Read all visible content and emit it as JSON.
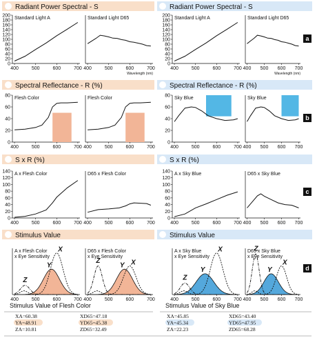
{
  "colors": {
    "left_band": "#f9dfc9",
    "right_band": "#d8e8f7",
    "flesh_fill": "#f2b597",
    "sky_fill": "#53b7e5",
    "sky_curve_fill": "#54a8dc",
    "badge": "#111111",
    "y_highlight_left": "#f9dfc9",
    "y_highlight_right": "#d8e8f7"
  },
  "rows": [
    {
      "label": "",
      "left_title": "Radiant Power Spectral - S",
      "right_title": "Radiant Power Spectral - S"
    },
    {
      "label": "b",
      "left_title": "Spectral Reflectance - R (%)",
      "right_title": "Spectral Reflectance - R (%)"
    },
    {
      "label": "c",
      "left_title": "S x R (%)",
      "right_title": "S x R (%)"
    },
    {
      "label": "d",
      "left_title": "Stimulus Value",
      "right_title": "Stimulus Value"
    }
  ],
  "badges": [
    "a",
    "b",
    "c",
    "d"
  ],
  "wavelength_unit": "Wavelength (nm)",
  "curve_labels": [
    "Z",
    "Y",
    "X"
  ],
  "chart_data": [
    {
      "id": "a1",
      "type": "line",
      "subtitle": "Standard Light A",
      "x": [
        400,
        450,
        500,
        550,
        600,
        650,
        700
      ],
      "y": [
        10,
        30,
        58,
        85,
        115,
        142,
        170
      ],
      "ylim": [
        0,
        200
      ],
      "yticks": [
        0,
        20,
        40,
        60,
        80,
        100,
        120,
        140,
        160,
        180,
        200
      ],
      "xticks": [
        400,
        500,
        600,
        700
      ]
    },
    {
      "id": "a2",
      "type": "line",
      "subtitle": "Standard Light D65",
      "x": [
        400,
        420,
        440,
        460,
        480,
        500,
        520,
        540,
        560,
        580,
        600,
        620,
        640,
        660,
        680,
        700
      ],
      "y": [
        82,
        93,
        104,
        117,
        114,
        110,
        105,
        104,
        99,
        96,
        90,
        88,
        84,
        80,
        74,
        72
      ],
      "ylim": [
        0,
        200
      ],
      "xticks": [
        400,
        500,
        600,
        700
      ]
    },
    {
      "id": "a3",
      "type": "line",
      "subtitle": "Standard Light A",
      "x": [
        400,
        450,
        500,
        550,
        600,
        650,
        700
      ],
      "y": [
        10,
        30,
        58,
        85,
        115,
        142,
        170
      ],
      "ylim": [
        0,
        200
      ],
      "yticks": [
        0,
        20,
        40,
        60,
        80,
        100,
        120,
        140,
        160,
        180,
        200
      ],
      "xticks": [
        400,
        500,
        600,
        700
      ]
    },
    {
      "id": "a4",
      "type": "line",
      "subtitle": "Standard Light D65",
      "x": [
        400,
        420,
        440,
        460,
        480,
        500,
        520,
        540,
        560,
        580,
        600,
        620,
        640,
        660,
        680,
        700
      ],
      "y": [
        82,
        93,
        104,
        117,
        114,
        110,
        105,
        104,
        99,
        96,
        90,
        88,
        84,
        80,
        74,
        72
      ],
      "ylim": [
        0,
        200
      ],
      "xticks": [
        400,
        500,
        600,
        700
      ]
    },
    {
      "id": "b1",
      "type": "line",
      "subtitle": "Flesh Color",
      "x": [
        400,
        450,
        500,
        530,
        560,
        580,
        600,
        620,
        650,
        700
      ],
      "y": [
        21,
        22,
        25,
        29,
        42,
        60,
        66,
        67,
        67,
        68
      ],
      "ylim": [
        0,
        80
      ],
      "yticks": [
        0,
        20,
        40,
        60,
        80
      ],
      "xticks": [
        400,
        500,
        600,
        700
      ],
      "swatch": {
        "x0": 580,
        "x1": 670,
        "y0": 0,
        "y1": 50
      }
    },
    {
      "id": "b2",
      "type": "line",
      "subtitle": "Flesh Color",
      "x": [
        400,
        450,
        500,
        530,
        560,
        580,
        600,
        620,
        650,
        700
      ],
      "y": [
        21,
        22,
        25,
        29,
        42,
        60,
        66,
        67,
        67,
        68
      ],
      "ylim": [
        0,
        80
      ],
      "xticks": [
        400,
        500,
        600,
        700
      ],
      "swatch": {
        "x0": 580,
        "x1": 670,
        "y0": 0,
        "y1": 50
      }
    },
    {
      "id": "b3",
      "type": "line",
      "subtitle": "Sky Blue",
      "x": [
        400,
        420,
        450,
        480,
        500,
        530,
        560,
        600,
        640,
        680,
        700
      ],
      "y": [
        35,
        45,
        58,
        60,
        59,
        53,
        45,
        40,
        37,
        38,
        40
      ],
      "ylim": [
        0,
        80
      ],
      "yticks": [
        0,
        20,
        40,
        60,
        80
      ],
      "xticks": [
        400,
        500,
        600,
        700
      ],
      "swatch": {
        "x0": 550,
        "x1": 670,
        "y0": 44,
        "y1": 80
      }
    },
    {
      "id": "b4",
      "type": "line",
      "subtitle": "Sky Blue",
      "x": [
        400,
        420,
        450,
        480,
        500,
        530,
        560,
        600,
        640,
        680,
        700
      ],
      "y": [
        35,
        45,
        58,
        60,
        59,
        53,
        45,
        40,
        37,
        38,
        40
      ],
      "ylim": [
        0,
        80
      ],
      "xticks": [
        400,
        500,
        600,
        700
      ],
      "swatch": {
        "x0": 600,
        "x1": 700,
        "y0": 44,
        "y1": 80
      }
    },
    {
      "id": "c1",
      "type": "line",
      "subtitle": "A x Flesh Color",
      "x": [
        400,
        450,
        500,
        550,
        580,
        600,
        650,
        700
      ],
      "y": [
        2,
        5,
        12,
        24,
        45,
        62,
        90,
        112
      ],
      "ylim": [
        0,
        140
      ],
      "yticks": [
        0,
        20,
        40,
        60,
        80,
        100,
        120,
        140
      ],
      "xticks": [
        400,
        500,
        600,
        700
      ]
    },
    {
      "id": "c2",
      "type": "line",
      "subtitle": "D65 x Flesh Color",
      "x": [
        400,
        450,
        500,
        550,
        580,
        600,
        620,
        650,
        680,
        700
      ],
      "y": [
        17,
        25,
        27,
        30,
        36,
        42,
        45,
        44,
        43,
        38
      ],
      "ylim": [
        0,
        140
      ],
      "xticks": [
        400,
        500,
        600,
        700
      ]
    },
    {
      "id": "c3",
      "type": "line",
      "subtitle": "A x Sky Blue",
      "x": [
        400,
        450,
        500,
        550,
        600,
        650,
        700
      ],
      "y": [
        4,
        12,
        30,
        42,
        55,
        68,
        78
      ],
      "ylim": [
        0,
        140
      ],
      "yticks": [
        0,
        20,
        40,
        60,
        80,
        100,
        120,
        140
      ],
      "xticks": [
        400,
        500,
        600,
        700
      ]
    },
    {
      "id": "c4",
      "type": "line",
      "subtitle": "D65 x Sky Blue",
      "x": [
        400,
        430,
        460,
        480,
        500,
        540,
        580,
        620,
        660,
        700
      ],
      "y": [
        30,
        48,
        66,
        72,
        65,
        55,
        45,
        40,
        38,
        30
      ],
      "ylim": [
        0,
        140
      ],
      "xticks": [
        400,
        500,
        600,
        700
      ]
    },
    {
      "id": "d1",
      "type": "area",
      "subtitle": "A x Flesh Color x Eye Sensitivity",
      "ylim": [
        0,
        1
      ],
      "xticks": [
        400,
        500,
        600,
        700
      ]
    },
    {
      "id": "d2",
      "type": "area",
      "subtitle": "D65 x Flesh Color x Eye Sensitivity",
      "ylim": [
        0,
        1
      ],
      "xticks": [
        400,
        500,
        600,
        700
      ]
    },
    {
      "id": "d3",
      "type": "area",
      "subtitle": "A x Sky Blue x Eye Sensitivity",
      "ylim": [
        0,
        1
      ],
      "xticks": [
        400,
        500,
        600,
        700
      ]
    },
    {
      "id": "d4",
      "type": "area",
      "subtitle": "D65 x Sky Blue x Eye Sensitivity",
      "ylim": [
        0,
        1
      ],
      "xticks": [
        400,
        500,
        600,
        700
      ]
    }
  ],
  "stimulus": {
    "left": {
      "title": "Stimulus Value of Flesh Color",
      "a": [
        "XA=60.38",
        "YA=48.91",
        "ZA=10.81"
      ],
      "d": [
        "XD65=47.18",
        "YD65=45.38",
        "ZD65=32.49"
      ]
    },
    "right": {
      "title": "Stimulus Value of Sky Blue",
      "a": [
        "XA=45.85",
        "YA=45.34",
        "ZA=22.23"
      ],
      "d": [
        "XD65=43.40",
        "YD65=47.95",
        "ZD65=68.28"
      ]
    }
  }
}
